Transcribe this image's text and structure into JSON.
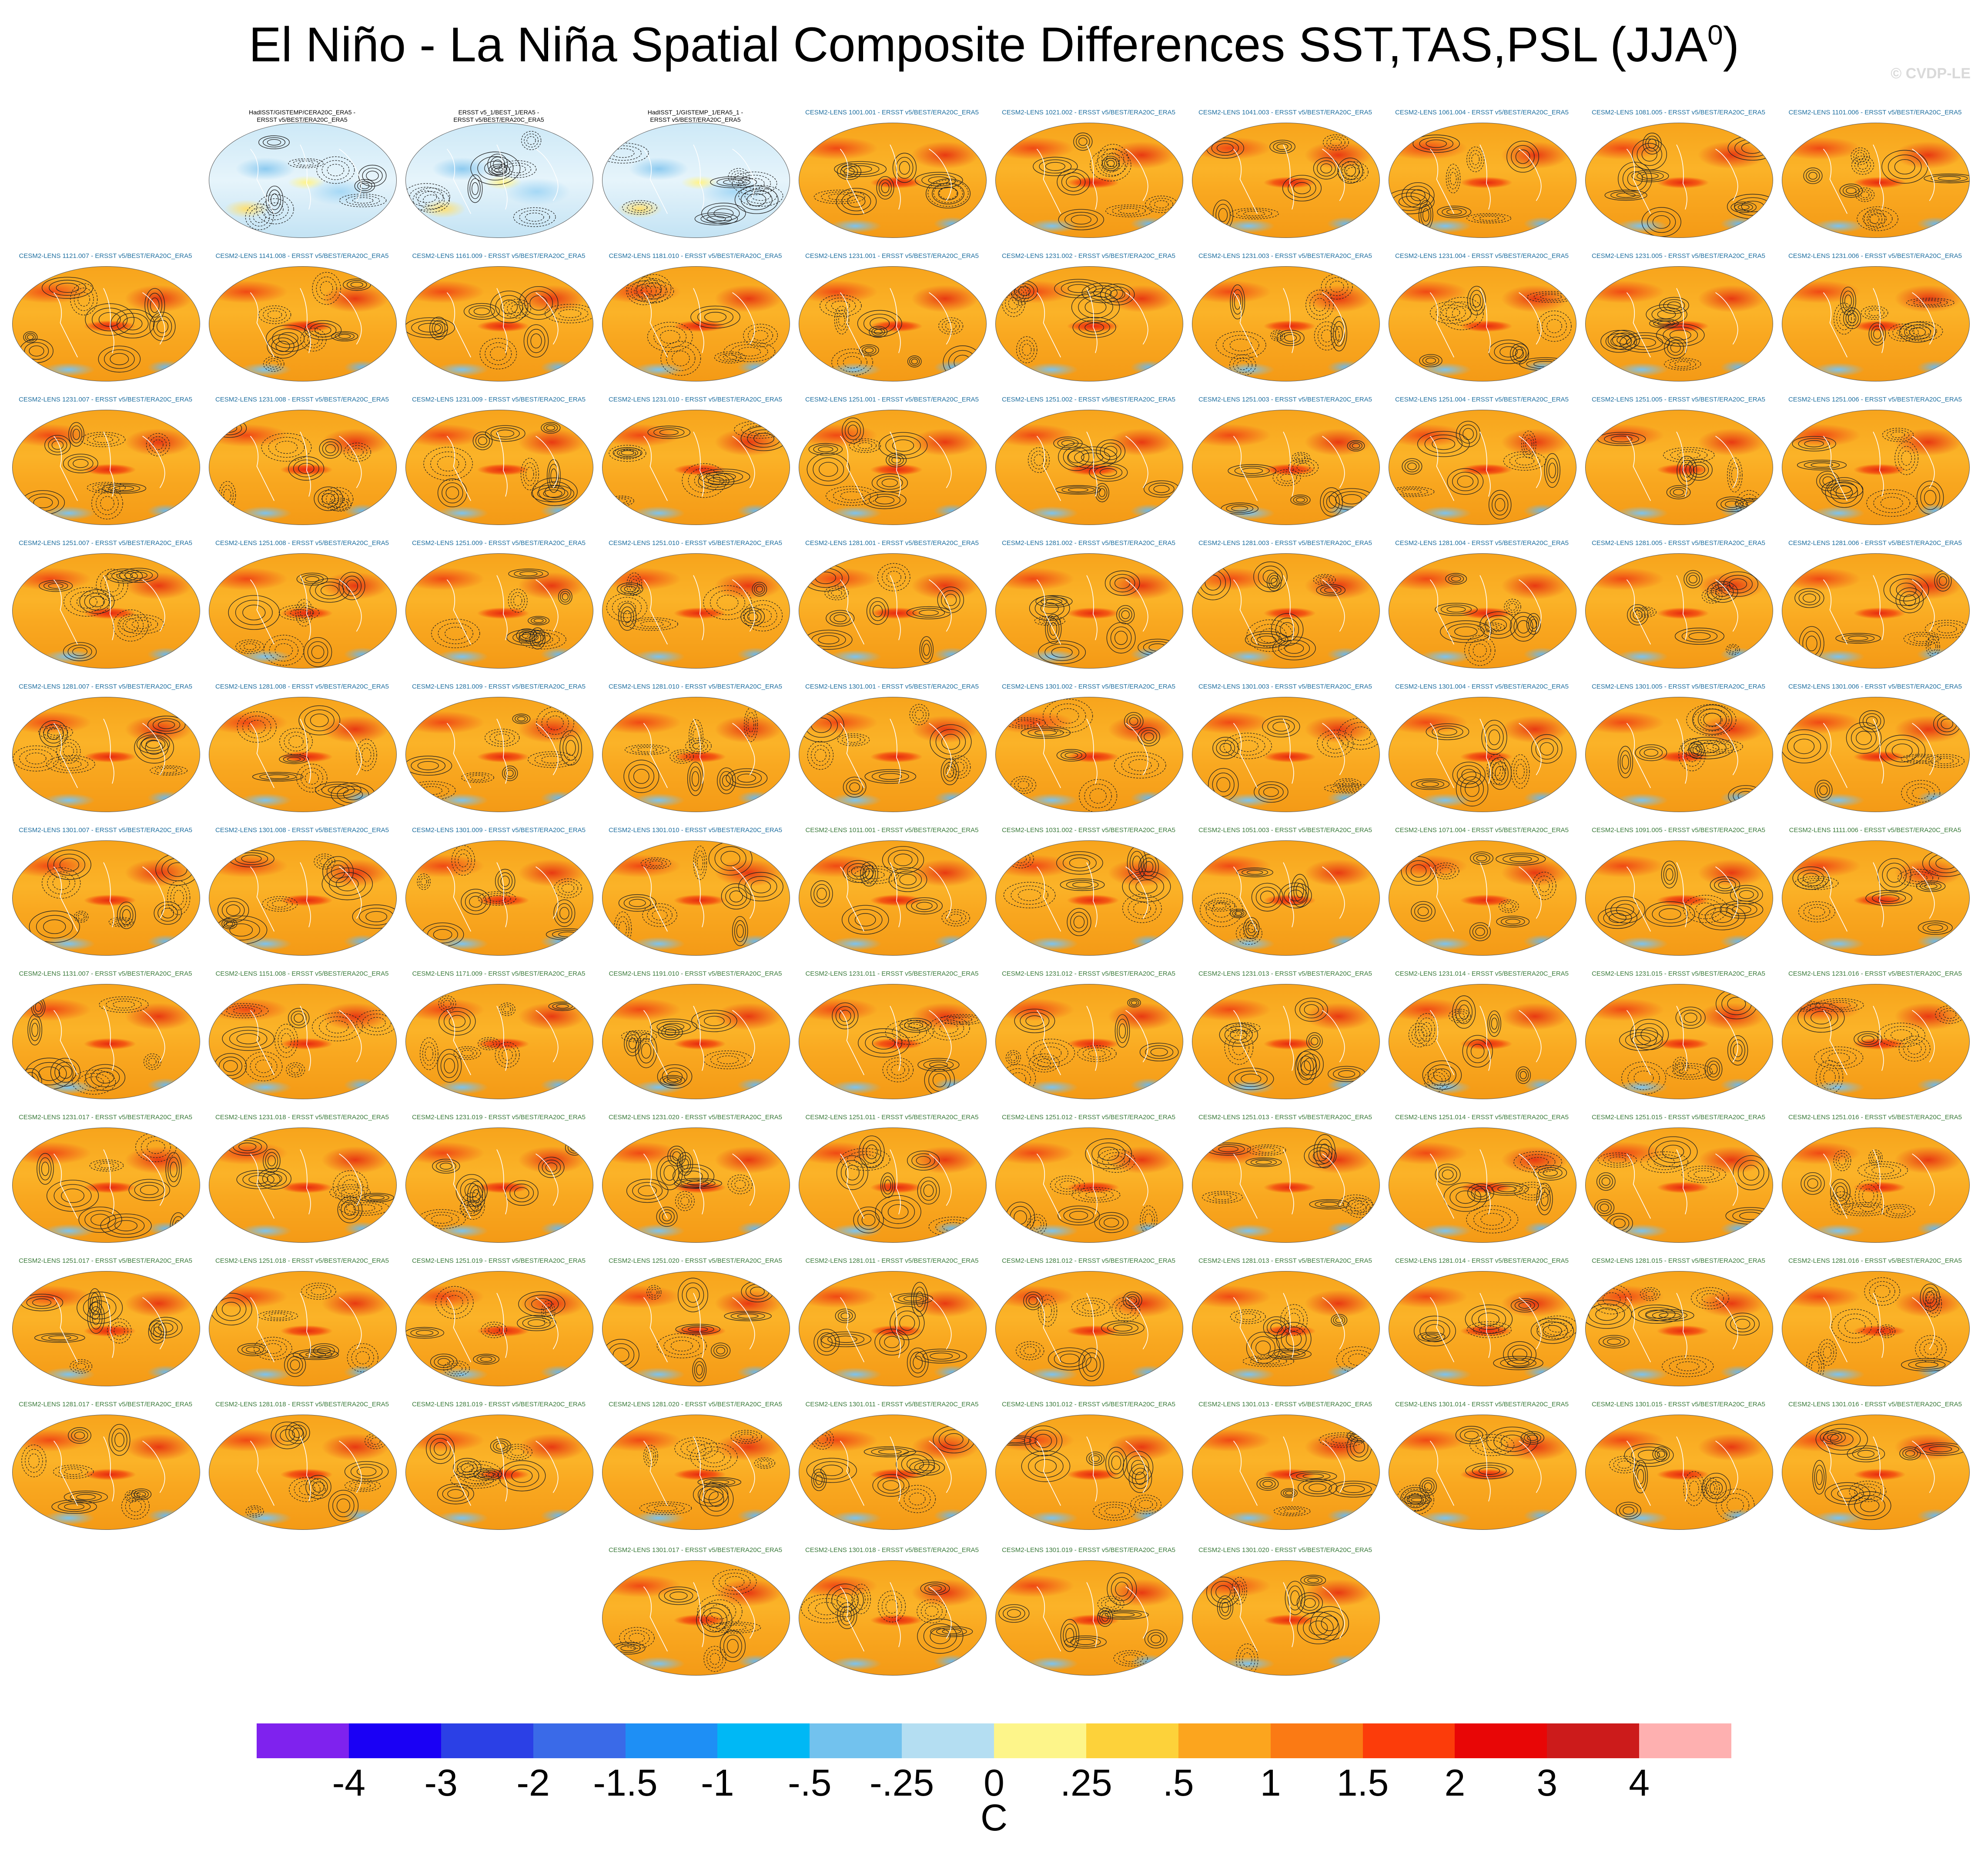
{
  "title_main": "El Niño - La Niña Spatial Composite Differences SST,TAS,PSL (JJA",
  "title_sup": "0",
  "title_close": ")",
  "watermark": "© CVDP-LE",
  "units": "C",
  "colorbar": {
    "colors": [
      "#7f22ee",
      "#1a00f5",
      "#2b40e6",
      "#3a6ae8",
      "#1e8ff5",
      "#00b8f5",
      "#72c2ee",
      "#b4def2",
      "#fdf58a",
      "#fdd23a",
      "#fca51e",
      "#fb7a14",
      "#fc3c0a",
      "#e80606",
      "#cc1b1b",
      "#feb0b0"
    ],
    "tick_labels": [
      "-4",
      "-3",
      "-2",
      "-1.5",
      "-1",
      "-.5",
      "-.25",
      "0",
      ".25",
      ".5",
      "1",
      "1.5",
      "2",
      "3",
      "4"
    ]
  },
  "obs_panels": [
    "HadISST/GISTEMP/CERA20C_ERA5 -\nERSST v5/BEST/ERA20C_ERA5",
    "ERSST v5_1/BEST_1/ERA5 -\nERSST v5/BEST/ERA20C_ERA5",
    "HadISST_1/GISTEMP_1/ERA5_1 -\nERSST v5/BEST/ERA20C_ERA5"
  ],
  "model_panels": [
    "CESM2-LENS 1001.001 - ERSST v5/BEST/ERA20C_ERA5",
    "CESM2-LENS 1021.002 - ERSST v5/BEST/ERA20C_ERA5",
    "CESM2-LENS 1041.003 - ERSST v5/BEST/ERA20C_ERA5",
    "CESM2-LENS 1061.004 - ERSST v5/BEST/ERA20C_ERA5",
    "CESM2-LENS 1081.005 - ERSST v5/BEST/ERA20C_ERA5",
    "CESM2-LENS 1101.006 - ERSST v5/BEST/ERA20C_ERA5",
    "CESM2-LENS 1121.007 - ERSST v5/BEST/ERA20C_ERA5",
    "CESM2-LENS 1141.008 - ERSST v5/BEST/ERA20C_ERA5",
    "CESM2-LENS 1161.009 - ERSST v5/BEST/ERA20C_ERA5",
    "CESM2-LENS 1181.010 - ERSST v5/BEST/ERA20C_ERA5",
    "CESM2-LENS 1231.001 - ERSST v5/BEST/ERA20C_ERA5",
    "CESM2-LENS 1231.002 - ERSST v5/BEST/ERA20C_ERA5",
    "CESM2-LENS 1231.003 - ERSST v5/BEST/ERA20C_ERA5",
    "CESM2-LENS 1231.004 - ERSST v5/BEST/ERA20C_ERA5",
    "CESM2-LENS 1231.005 - ERSST v5/BEST/ERA20C_ERA5",
    "CESM2-LENS 1231.006 - ERSST v5/BEST/ERA20C_ERA5",
    "CESM2-LENS 1231.007 - ERSST v5/BEST/ERA20C_ERA5",
    "CESM2-LENS 1231.008 - ERSST v5/BEST/ERA20C_ERA5",
    "CESM2-LENS 1231.009 - ERSST v5/BEST/ERA20C_ERA5",
    "CESM2-LENS 1231.010 - ERSST v5/BEST/ERA20C_ERA5",
    "CESM2-LENS 1251.001 - ERSST v5/BEST/ERA20C_ERA5",
    "CESM2-LENS 1251.002 - ERSST v5/BEST/ERA20C_ERA5",
    "CESM2-LENS 1251.003 - ERSST v5/BEST/ERA20C_ERA5",
    "CESM2-LENS 1251.004 - ERSST v5/BEST/ERA20C_ERA5",
    "CESM2-LENS 1251.005 - ERSST v5/BEST/ERA20C_ERA5",
    "CESM2-LENS 1251.006 - ERSST v5/BEST/ERA20C_ERA5",
    "CESM2-LENS 1251.007 - ERSST v5/BEST/ERA20C_ERA5",
    "CESM2-LENS 1251.008 - ERSST v5/BEST/ERA20C_ERA5",
    "CESM2-LENS 1251.009 - ERSST v5/BEST/ERA20C_ERA5",
    "CESM2-LENS 1251.010 - ERSST v5/BEST/ERA20C_ERA5",
    "CESM2-LENS 1281.001 - ERSST v5/BEST/ERA20C_ERA5",
    "CESM2-LENS 1281.002 - ERSST v5/BEST/ERA20C_ERA5",
    "CESM2-LENS 1281.003 - ERSST v5/BEST/ERA20C_ERA5",
    "CESM2-LENS 1281.004 - ERSST v5/BEST/ERA20C_ERA5",
    "CESM2-LENS 1281.005 - ERSST v5/BEST/ERA20C_ERA5",
    "CESM2-LENS 1281.006 - ERSST v5/BEST/ERA20C_ERA5",
    "CESM2-LENS 1281.007 - ERSST v5/BEST/ERA20C_ERA5",
    "CESM2-LENS 1281.008 - ERSST v5/BEST/ERA20C_ERA5",
    "CESM2-LENS 1281.009 - ERSST v5/BEST/ERA20C_ERA5",
    "CESM2-LENS 1281.010 - ERSST v5/BEST/ERA20C_ERA5",
    "CESM2-LENS 1301.001 - ERSST v5/BEST/ERA20C_ERA5",
    "CESM2-LENS 1301.002 - ERSST v5/BEST/ERA20C_ERA5",
    "CESM2-LENS 1301.003 - ERSST v5/BEST/ERA20C_ERA5",
    "CESM2-LENS 1301.004 - ERSST v5/BEST/ERA20C_ERA5",
    "CESM2-LENS 1301.005 - ERSST v5/BEST/ERA20C_ERA5",
    "CESM2-LENS 1301.006 - ERSST v5/BEST/ERA20C_ERA5",
    "CESM2-LENS 1301.007 - ERSST v5/BEST/ERA20C_ERA5",
    "CESM2-LENS 1301.008 - ERSST v5/BEST/ERA20C_ERA5",
    "CESM2-LENS 1301.009 - ERSST v5/BEST/ERA20C_ERA5",
    "CESM2-LENS 1301.010 - ERSST v5/BEST/ERA20C_ERA5",
    "CESM2-LENS 1011.001 - ERSST v5/BEST/ERA20C_ERA5",
    "CESM2-LENS 1031.002 - ERSST v5/BEST/ERA20C_ERA5",
    "CESM2-LENS 1051.003 - ERSST v5/BEST/ERA20C_ERA5",
    "CESM2-LENS 1071.004 - ERSST v5/BEST/ERA20C_ERA5",
    "CESM2-LENS 1091.005 - ERSST v5/BEST/ERA20C_ERA5",
    "CESM2-LENS 1111.006 - ERSST v5/BEST/ERA20C_ERA5",
    "CESM2-LENS 1131.007 - ERSST v5/BEST/ERA20C_ERA5",
    "CESM2-LENS 1151.008 - ERSST v5/BEST/ERA20C_ERA5",
    "CESM2-LENS 1171.009 - ERSST v5/BEST/ERA20C_ERA5",
    "CESM2-LENS 1191.010 - ERSST v5/BEST/ERA20C_ERA5",
    "CESM2-LENS 1231.011 - ERSST v5/BEST/ERA20C_ERA5",
    "CESM2-LENS 1231.012 - ERSST v5/BEST/ERA20C_ERA5",
    "CESM2-LENS 1231.013 - ERSST v5/BEST/ERA20C_ERA5",
    "CESM2-LENS 1231.014 - ERSST v5/BEST/ERA20C_ERA5",
    "CESM2-LENS 1231.015 - ERSST v5/BEST/ERA20C_ERA5",
    "CESM2-LENS 1231.016 - ERSST v5/BEST/ERA20C_ERA5",
    "CESM2-LENS 1231.017 - ERSST v5/BEST/ERA20C_ERA5",
    "CESM2-LENS 1231.018 - ERSST v5/BEST/ERA20C_ERA5",
    "CESM2-LENS 1231.019 - ERSST v5/BEST/ERA20C_ERA5",
    "CESM2-LENS 1231.020 - ERSST v5/BEST/ERA20C_ERA5",
    "CESM2-LENS 1251.011 - ERSST v5/BEST/ERA20C_ERA5",
    "CESM2-LENS 1251.012 - ERSST v5/BEST/ERA20C_ERA5",
    "CESM2-LENS 1251.013 - ERSST v5/BEST/ERA20C_ERA5",
    "CESM2-LENS 1251.014 - ERSST v5/BEST/ERA20C_ERA5",
    "CESM2-LENS 1251.015 - ERSST v5/BEST/ERA20C_ERA5",
    "CESM2-LENS 1251.016 - ERSST v5/BEST/ERA20C_ERA5",
    "CESM2-LENS 1251.017 - ERSST v5/BEST/ERA20C_ERA5",
    "CESM2-LENS 1251.018 - ERSST v5/BEST/ERA20C_ERA5",
    "CESM2-LENS 1251.019 - ERSST v5/BEST/ERA20C_ERA5",
    "CESM2-LENS 1251.020 - ERSST v5/BEST/ERA20C_ERA5",
    "CESM2-LENS 1281.011 - ERSST v5/BEST/ERA20C_ERA5",
    "CESM2-LENS 1281.012 - ERSST v5/BEST/ERA20C_ERA5",
    "CESM2-LENS 1281.013 - ERSST v5/BEST/ERA20C_ERA5",
    "CESM2-LENS 1281.014 - ERSST v5/BEST/ERA20C_ERA5",
    "CESM2-LENS 1281.015 - ERSST v5/BEST/ERA20C_ERA5",
    "CESM2-LENS 1281.016 - ERSST v5/BEST/ERA20C_ERA5",
    "CESM2-LENS 1281.017 - ERSST v5/BEST/ERA20C_ERA5",
    "CESM2-LENS 1281.018 - ERSST v5/BEST/ERA20C_ERA5",
    "CESM2-LENS 1281.019 - ERSST v5/BEST/ERA20C_ERA5",
    "CESM2-LENS 1281.020 - ERSST v5/BEST/ERA20C_ERA5",
    "CESM2-LENS 1301.011 - ERSST v5/BEST/ERA20C_ERA5",
    "CESM2-LENS 1301.012 - ERSST v5/BEST/ERA20C_ERA5",
    "CESM2-LENS 1301.013 - ERSST v5/BEST/ERA20C_ERA5",
    "CESM2-LENS 1301.014 - ERSST v5/BEST/ERA20C_ERA5",
    "CESM2-LENS 1301.015 - ERSST v5/BEST/ERA20C_ERA5",
    "CESM2-LENS 1301.016 - ERSST v5/BEST/ERA20C_ERA5",
    "CESM2-LENS 1301.017 - ERSST v5/BEST/ERA20C_ERA5",
    "CESM2-LENS 1301.018 - ERSST v5/BEST/ERA20C_ERA5",
    "CESM2-LENS 1301.019 - ERSST v5/BEST/ERA20C_ERA5",
    "CESM2-LENS 1301.020 - ERSST v5/BEST/ERA20C_ERA5"
  ]
}
